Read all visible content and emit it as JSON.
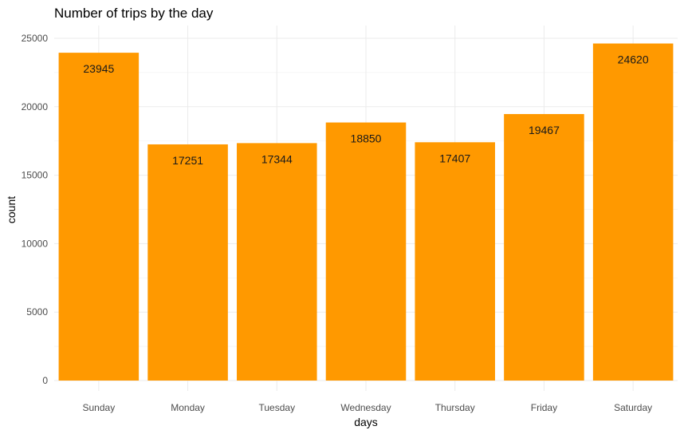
{
  "chart_data": {
    "type": "bar",
    "title": "Number of trips by the day",
    "xlabel": "days",
    "ylabel": "count",
    "categories": [
      "Sunday",
      "Monday",
      "Tuesday",
      "Wednesday",
      "Thursday",
      "Friday",
      "Saturday"
    ],
    "values": [
      23945,
      17251,
      17344,
      18850,
      17407,
      19467,
      24620
    ],
    "data_labels": [
      "23945",
      "17251",
      "17344",
      "18850",
      "17407",
      "19467",
      "24620"
    ],
    "ylim": [
      0,
      25500
    ],
    "yticks": [
      0,
      5000,
      10000,
      15000,
      20000,
      25000
    ],
    "ytick_labels": [
      "0",
      "5000",
      "10000",
      "15000",
      "20000",
      "25000"
    ],
    "grid": true,
    "bar_color": "#FF9900",
    "legend": "none"
  }
}
